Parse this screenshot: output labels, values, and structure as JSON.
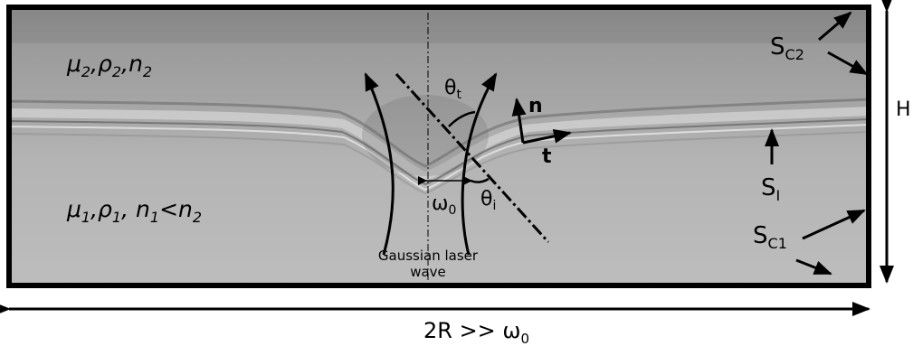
{
  "upper_medium": {
    "mu": "μ",
    "mu_sub": "2",
    "rho": "ρ",
    "rho_sub": "2",
    "n": "n",
    "n_sub": "2"
  },
  "lower_medium": {
    "mu": "μ",
    "mu_sub": "1",
    "rho": "ρ",
    "rho_sub": "1",
    "n": "n",
    "n_sub": "1",
    "ineq": "<n",
    "ineq_sub": "2"
  },
  "labels": {
    "theta_t": "θ",
    "theta_t_sub": "t",
    "theta_i": "θ",
    "theta_i_sub": "i",
    "omega0": "ω",
    "omega0_sub": "0",
    "normal": "n",
    "tangent": "t",
    "beam_line1": "Gaussian laser",
    "beam_line2": "wave",
    "sc2": "S",
    "sc2_sub": "C2",
    "si": "S",
    "si_sub": "I",
    "sc1": "S",
    "sc1_sub": "C1",
    "height": "H",
    "width": "2R >> ω",
    "width_sub": "0"
  },
  "colors": {
    "frame": "#000000",
    "background": "#ffffff"
  }
}
